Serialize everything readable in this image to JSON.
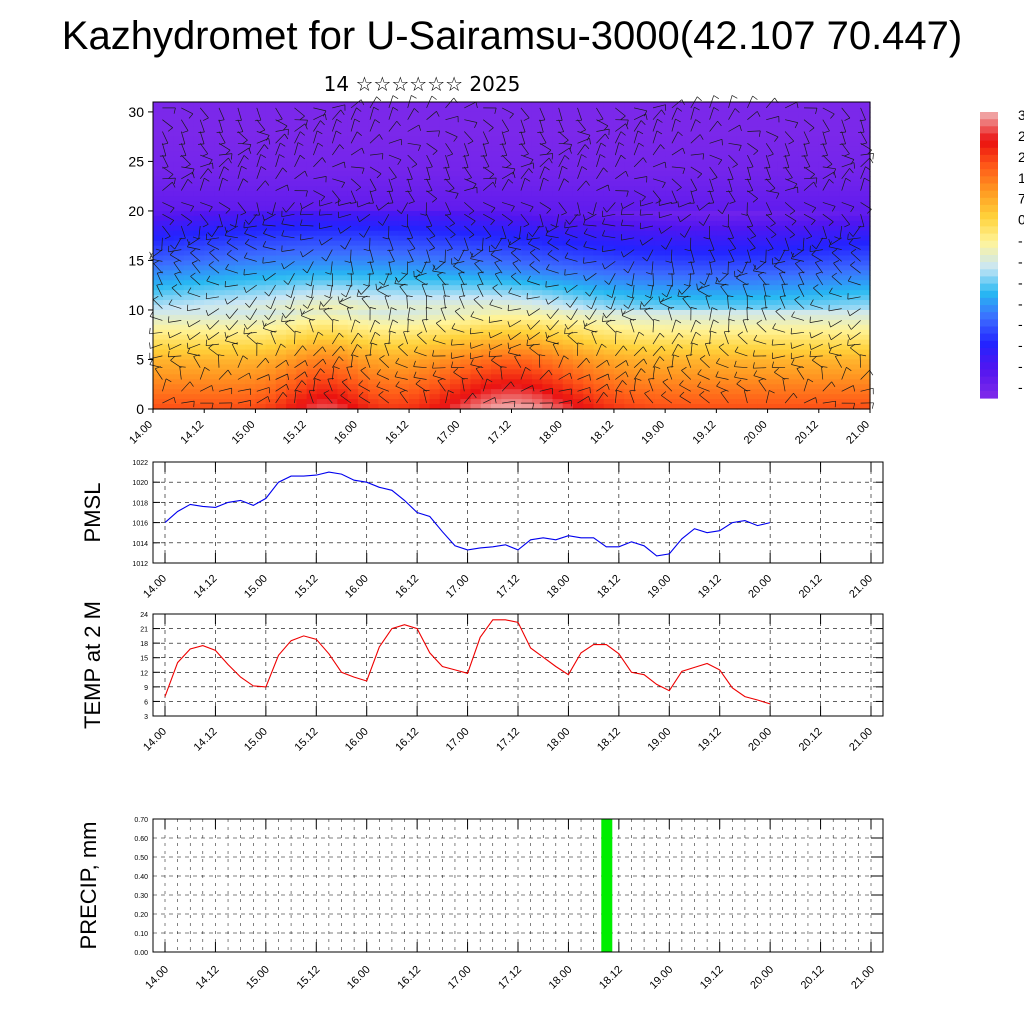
{
  "title": "Kazhydromet for U-Sairamsu-3000(42.107 70.447)",
  "subtitle": "14 ☆☆☆☆☆☆ 2025",
  "x_ticks": [
    "14.00",
    "14.12",
    "15.00",
    "15.12",
    "16.00",
    "16.12",
    "17.00",
    "17.12",
    "18.00",
    "18.12",
    "19.00",
    "19.12",
    "20.00",
    "20.12",
    "21.00"
  ],
  "colorbar": {
    "stops": [
      "#7b28ea",
      "#5215f0",
      "#2323ff",
      "#3c6cff",
      "#27b9f2",
      "#c9e6f5",
      "#fff49a",
      "#ffd23a",
      "#ff9a22",
      "#ff5a18",
      "#ea1010",
      "#f0a0a0"
    ],
    "labels": [
      "3",
      "2",
      "2",
      "1",
      "7",
      "0",
      "-",
      "-",
      "-",
      "-",
      "-",
      "-",
      "-",
      "-"
    ]
  },
  "chart_data": [
    {
      "type": "heatmap",
      "ylim": [
        0,
        31
      ],
      "y_ticks": [
        0,
        5,
        10,
        15,
        20,
        25,
        30
      ],
      "xlabels": "x_ticks",
      "note_levels": [
        {
          "y": 0,
          "hot": 5.5
        },
        {
          "y": 5,
          "hot": 4.5
        },
        {
          "y": 10,
          "hot": 3
        },
        {
          "y": 15,
          "hot": 1.7
        },
        {
          "y": 18,
          "hot": 1.0
        },
        {
          "y": 20,
          "hot": 0.4
        },
        {
          "y": 24,
          "hot": 0.1
        },
        {
          "y": 28,
          "hot": 0.0
        },
        {
          "y": 31,
          "hot": 0.0
        }
      ]
    },
    {
      "type": "line",
      "ylabel": "PMSL",
      "ylim": [
        1012,
        1022
      ],
      "y_ticks": [
        1012,
        1014,
        1016,
        1018,
        1020,
        1022
      ],
      "color": "#0000ee",
      "x": [
        0.0,
        0.125,
        0.25,
        0.375,
        0.5,
        0.625,
        0.75,
        0.875,
        1.0,
        1.125,
        1.25,
        1.375,
        1.5,
        1.625,
        1.75,
        1.875,
        2.0,
        2.125,
        2.25,
        2.375,
        2.5,
        2.625,
        2.75,
        2.875,
        3.0,
        3.125,
        3.25,
        3.375,
        3.5,
        3.625,
        3.75,
        3.875,
        4.0,
        4.125,
        4.25,
        4.375,
        4.5,
        4.625,
        4.75,
        4.875,
        5.0,
        5.125,
        5.25,
        5.375,
        5.5,
        5.625,
        5.75,
        5.875,
        6.0
      ],
      "values": [
        1016.0,
        1017.1,
        1017.8,
        1017.6,
        1017.5,
        1018.0,
        1018.2,
        1017.7,
        1018.4,
        1020.0,
        1020.6,
        1020.6,
        1020.7,
        1021.0,
        1020.8,
        1020.2,
        1020.0,
        1019.5,
        1019.2,
        1018.2,
        1017.0,
        1016.6,
        1015.1,
        1013.7,
        1013.3,
        1013.5,
        1013.6,
        1013.8,
        1013.3,
        1014.3,
        1014.5,
        1014.3,
        1014.7,
        1014.5,
        1014.5,
        1013.6,
        1013.6,
        1014.1,
        1013.7,
        1012.7,
        1012.9,
        1014.4,
        1015.4,
        1015.0,
        1015.2,
        1016.0,
        1016.2,
        1015.7,
        1016.0
      ]
    },
    {
      "type": "line",
      "ylabel": "TEMP at 2 M",
      "ylim": [
        3,
        24
      ],
      "y_ticks": [
        3,
        6,
        9,
        12,
        15,
        18,
        21,
        24
      ],
      "color": "#ee0000",
      "x": [
        0.0,
        0.125,
        0.25,
        0.375,
        0.5,
        0.625,
        0.75,
        0.875,
        1.0,
        1.125,
        1.25,
        1.375,
        1.5,
        1.625,
        1.75,
        1.875,
        2.0,
        2.125,
        2.25,
        2.375,
        2.5,
        2.625,
        2.75,
        2.875,
        3.0,
        3.125,
        3.25,
        3.375,
        3.5,
        3.625,
        3.75,
        3.875,
        4.0,
        4.125,
        4.25,
        4.375,
        4.5,
        4.625,
        4.75,
        4.875,
        5.0,
        5.125,
        5.25,
        5.375,
        5.5,
        5.625,
        5.75,
        5.875,
        6.0
      ],
      "values": [
        7.0,
        14.0,
        16.8,
        17.5,
        16.5,
        13.6,
        11.0,
        9.2,
        9.0,
        15.5,
        18.5,
        19.5,
        18.8,
        15.8,
        12.0,
        11.0,
        10.2,
        17.2,
        21.0,
        21.8,
        21.0,
        16.0,
        13.2,
        12.5,
        11.8,
        19.2,
        22.8,
        22.8,
        22.3,
        17.0,
        15.1,
        13.2,
        11.5,
        16.0,
        17.7,
        17.7,
        15.8,
        12.0,
        11.5,
        9.5,
        8.2,
        12.2,
        13.0,
        13.8,
        12.5,
        8.8,
        7.0,
        6.3,
        5.5
      ]
    },
    {
      "type": "bar",
      "ylabel": "PRECIP, mm",
      "ylim": [
        0,
        0.7
      ],
      "y_ticks": [
        "0.00",
        "0.10",
        "0.20",
        "0.30",
        "0.40",
        "0.50",
        "0.60",
        "0.70"
      ],
      "color": "#00ee00",
      "x": [
        4.375
      ],
      "values": [
        0.7
      ]
    }
  ]
}
